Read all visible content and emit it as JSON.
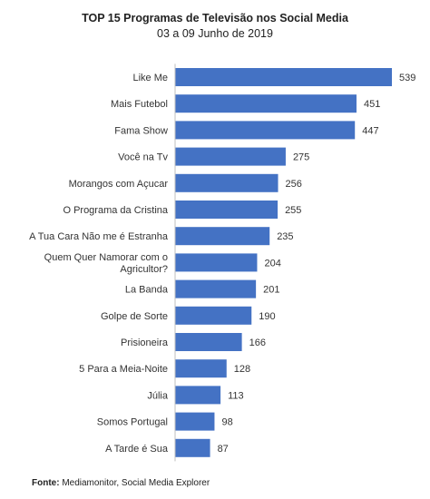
{
  "chart_data": {
    "type": "bar",
    "orientation": "horizontal",
    "title": "TOP 15 Programas de Televisão nos Social Media",
    "subtitle": "03 a 09 Junho de 2019",
    "categories": [
      "Like Me",
      "Mais Futebol",
      "Fama Show",
      "Você na Tv",
      "Morangos com Açucar",
      "O Programa da Cristina",
      "A Tua Cara Não me é Estranha",
      "Quem Quer Namorar com o Agricultor?",
      "La Banda",
      "Golpe de Sorte",
      "Prisioneira",
      "5 Para a Meia-Noite",
      "Júlia",
      "Somos Portugal",
      "A Tarde é Sua"
    ],
    "category_lines": [
      [
        "Like Me"
      ],
      [
        "Mais Futebol"
      ],
      [
        "Fama Show"
      ],
      [
        "Você na Tv"
      ],
      [
        "Morangos com Açucar"
      ],
      [
        "O Programa da Cristina"
      ],
      [
        "A Tua Cara Não me é Estranha"
      ],
      [
        "Quem Quer Namorar com o",
        "Agricultor?"
      ],
      [
        "La Banda"
      ],
      [
        "Golpe de Sorte"
      ],
      [
        "Prisioneira"
      ],
      [
        "5 Para a Meia-Noite"
      ],
      [
        "Júlia"
      ],
      [
        "Somos Portugal"
      ],
      [
        "A Tarde é Sua"
      ]
    ],
    "values": [
      539,
      451,
      447,
      275,
      256,
      255,
      235,
      204,
      201,
      190,
      166,
      128,
      113,
      98,
      87
    ],
    "bar_color": "#4472C4",
    "grid": false,
    "legend": "none",
    "xlim": [
      0,
      539
    ]
  },
  "source": {
    "label": "Fonte:",
    "text": " Mediamonitor, Social Media Explorer"
  }
}
